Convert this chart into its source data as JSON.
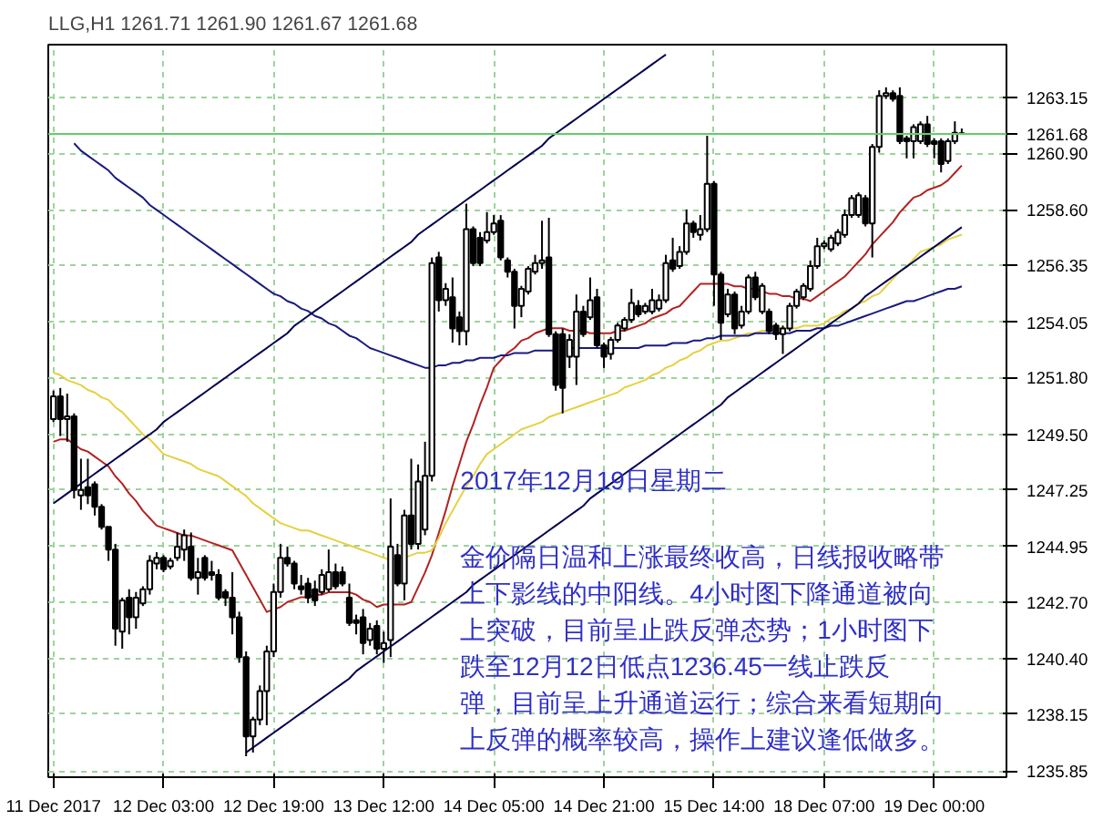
{
  "chart_data": {
    "type": "candlestick",
    "title": "LLG,H1  1261.71 1261.90 1261.67 1261.68",
    "categories": [
      "11 Dec 2017",
      null,
      null,
      null,
      null,
      null,
      null,
      null,
      null,
      null,
      null,
      null,
      null,
      null,
      null,
      null,
      "12 Dec 03:00",
      null,
      null,
      null,
      null,
      null,
      null,
      null,
      null,
      null,
      null,
      null,
      null,
      null,
      null,
      null,
      "12 Dec 19:00",
      null,
      null,
      null,
      null,
      null,
      null,
      null,
      null,
      null,
      null,
      null,
      null,
      null,
      null,
      null,
      "13 Dec 12:00",
      null,
      null,
      null,
      null,
      null,
      null,
      null,
      null,
      null,
      null,
      null,
      null,
      null,
      null,
      null,
      "14 Dec 05:00",
      null,
      null,
      null,
      null,
      null,
      null,
      null,
      null,
      null,
      null,
      null,
      null,
      null,
      null,
      null,
      "14 Dec 21:00",
      null,
      null,
      null,
      null,
      null,
      null,
      null,
      null,
      null,
      null,
      null,
      null,
      null,
      null,
      null,
      "15 Dec 14:00",
      null,
      null,
      null,
      null,
      null,
      null,
      null,
      null,
      null,
      null,
      null,
      null,
      null,
      null,
      null,
      "18 Dec 07:00",
      null,
      null,
      null,
      null,
      null,
      null,
      null,
      null,
      null,
      null,
      null,
      null,
      null,
      null,
      null,
      "19 Dec 00:00",
      null,
      null,
      null,
      null
    ],
    "ohlc": [
      [
        1250.12,
        1251.27,
        1250.0,
        1251.04
      ],
      [
        1251.04,
        1251.38,
        1249.43,
        1250.12
      ],
      [
        1250.12,
        1251.15,
        1249.2,
        1250.23
      ],
      [
        1250.23,
        1250.35,
        1246.9,
        1247.25
      ],
      [
        1247.02,
        1248.51,
        1246.44,
        1247.25
      ],
      [
        1247.36,
        1248.51,
        1246.67,
        1247.02
      ],
      [
        1247.48,
        1247.59,
        1246.21,
        1246.56
      ],
      [
        1246.56,
        1246.67,
        1245.64,
        1245.75
      ],
      [
        1245.75,
        1245.75,
        1244.37,
        1244.83
      ],
      [
        1244.83,
        1245.06,
        1240.93,
        1241.62
      ],
      [
        1241.5,
        1242.88,
        1240.81,
        1242.77
      ],
      [
        1242.88,
        1243.22,
        1241.39,
        1242.08
      ],
      [
        1242.08,
        1243.11,
        1241.62,
        1242.88
      ],
      [
        1242.65,
        1243.34,
        1242.54,
        1243.22
      ],
      [
        1243.22,
        1244.6,
        1243.0,
        1244.37
      ],
      [
        1244.26,
        1244.72,
        1244.03,
        1244.49
      ],
      [
        1244.49,
        1244.6,
        1243.91,
        1244.03
      ],
      [
        1244.14,
        1244.49,
        1244.03,
        1244.37
      ],
      [
        1244.49,
        1245.52,
        1244.37,
        1244.95
      ],
      [
        1244.83,
        1245.64,
        1244.37,
        1245.41
      ],
      [
        1244.95,
        1245.52,
        1243.57,
        1243.68
      ],
      [
        1243.68,
        1244.49,
        1243.0,
        1243.91
      ],
      [
        1244.49,
        1244.6,
        1243.57,
        1243.68
      ],
      [
        1243.91,
        1244.37,
        1243.57,
        1243.8
      ],
      [
        1243.8,
        1244.03,
        1242.77,
        1242.88
      ],
      [
        1243.11,
        1243.22,
        1242.54,
        1242.88
      ],
      [
        1242.88,
        1243.91,
        1241.39,
        1242.08
      ],
      [
        1242.08,
        1242.31,
        1240.24,
        1240.47
      ],
      [
        1240.47,
        1240.7,
        1236.45,
        1237.25
      ],
      [
        1237.25,
        1238.05,
        1236.6,
        1237.94
      ],
      [
        1237.94,
        1239.32,
        1237.71,
        1239.09
      ],
      [
        1239.09,
        1240.93,
        1237.71,
        1240.7
      ],
      [
        1240.7,
        1243.45,
        1240.47,
        1243.11
      ],
      [
        1243.11,
        1245.06,
        1242.88,
        1244.49
      ],
      [
        1244.49,
        1244.95,
        1244.14,
        1244.26
      ],
      [
        1244.26,
        1244.37,
        1243.22,
        1243.45
      ],
      [
        1243.34,
        1243.8,
        1243.0,
        1243.22
      ],
      [
        1243.45,
        1243.68,
        1242.65,
        1242.88
      ],
      [
        1243.22,
        1243.57,
        1242.54,
        1242.77
      ],
      [
        1243.11,
        1244.03,
        1243.0,
        1243.8
      ],
      [
        1243.22,
        1244.83,
        1243.11,
        1243.91
      ],
      [
        1243.91,
        1244.26,
        1243.22,
        1243.34
      ],
      [
        1243.91,
        1244.14,
        1243.34,
        1243.45
      ],
      [
        1242.88,
        1243.45,
        1241.73,
        1241.85
      ],
      [
        1241.96,
        1242.19,
        1241.39,
        1241.85
      ],
      [
        1242.08,
        1242.42,
        1240.58,
        1241.04
      ],
      [
        1241.16,
        1241.85,
        1240.93,
        1241.62
      ],
      [
        1241.73,
        1241.96,
        1240.58,
        1240.81
      ],
      [
        1240.81,
        1241.5,
        1240.24,
        1241.04
      ],
      [
        1241.16,
        1246.9,
        1240.47,
        1244.95
      ],
      [
        1244.6,
        1245.06,
        1243.34,
        1243.45
      ],
      [
        1243.45,
        1246.44,
        1242.77,
        1246.21
      ],
      [
        1246.21,
        1248.51,
        1244.83,
        1245.06
      ],
      [
        1245.06,
        1248.28,
        1244.83,
        1247.59
      ],
      [
        1245.64,
        1249.2,
        1245.41,
        1247.82
      ],
      [
        1247.82,
        1256.67,
        1247.59,
        1256.44
      ],
      [
        1256.67,
        1256.9,
        1254.48,
        1254.94
      ],
      [
        1254.94,
        1255.63,
        1254.71,
        1255.4
      ],
      [
        1255.06,
        1255.86,
        1253.22,
        1253.79
      ],
      [
        1254.25,
        1254.48,
        1253.11,
        1253.68
      ],
      [
        1253.68,
        1258.85,
        1253.11,
        1257.82
      ],
      [
        1257.82,
        1257.93,
        1256.32,
        1256.44
      ],
      [
        1257.47,
        1257.7,
        1256.32,
        1256.44
      ],
      [
        1257.36,
        1258.51,
        1257.24,
        1257.7
      ],
      [
        1257.7,
        1258.39,
        1257.59,
        1258.05
      ],
      [
        1258.16,
        1258.39,
        1256.55,
        1256.67
      ],
      [
        1256.55,
        1256.67,
        1255.86,
        1256.09
      ],
      [
        1256.09,
        1256.21,
        1253.79,
        1254.71
      ],
      [
        1254.71,
        1255.52,
        1254.25,
        1255.4
      ],
      [
        1255.29,
        1256.32,
        1255.17,
        1256.21
      ],
      [
        1256.09,
        1256.78,
        1255.98,
        1256.44
      ],
      [
        1256.44,
        1258.16,
        1256.21,
        1256.55
      ],
      [
        1256.67,
        1258.28,
        1253.45,
        1253.56
      ],
      [
        1253.56,
        1253.68,
        1251.27,
        1251.5
      ],
      [
        1253.56,
        1253.79,
        1250.35,
        1251.38
      ],
      [
        1252.65,
        1253.56,
        1252.19,
        1253.33
      ],
      [
        1252.65,
        1255.17,
        1251.5,
        1254.48
      ],
      [
        1254.48,
        1254.71,
        1253.45,
        1253.56
      ],
      [
        1254.25,
        1255.86,
        1254.14,
        1254.94
      ],
      [
        1255.06,
        1255.4,
        1252.99,
        1253.11
      ],
      [
        1253.11,
        1253.22,
        1252.19,
        1252.65
      ],
      [
        1252.76,
        1253.45,
        1252.53,
        1253.33
      ],
      [
        1253.33,
        1254.02,
        1253.22,
        1253.91
      ],
      [
        1253.79,
        1254.25,
        1253.68,
        1254.14
      ],
      [
        1254.14,
        1255.4,
        1254.02,
        1254.83
      ],
      [
        1254.71,
        1254.94,
        1254.25,
        1254.37
      ],
      [
        1254.48,
        1254.83,
        1254.37,
        1254.71
      ],
      [
        1254.48,
        1255.4,
        1254.37,
        1254.94
      ],
      [
        1254.6,
        1255.17,
        1254.48,
        1254.94
      ],
      [
        1254.94,
        1256.78,
        1254.83,
        1256.44
      ],
      [
        1256.55,
        1257.47,
        1256.09,
        1256.21
      ],
      [
        1256.32,
        1257.13,
        1256.21,
        1256.9
      ],
      [
        1256.9,
        1258.62,
        1256.78,
        1258.05
      ],
      [
        1258.05,
        1258.16,
        1257.47,
        1257.7
      ],
      [
        1257.59,
        1258.39,
        1257.36,
        1257.82
      ],
      [
        1257.82,
        1261.61,
        1257.7,
        1259.66
      ],
      [
        1259.66,
        1259.77,
        1254.71,
        1255.98
      ],
      [
        1255.98,
        1256.09,
        1253.33,
        1254.02
      ],
      [
        1254.37,
        1255.4,
        1254.25,
        1255.17
      ],
      [
        1255.17,
        1255.29,
        1253.56,
        1253.79
      ],
      [
        1253.91,
        1254.71,
        1253.79,
        1254.48
      ],
      [
        1254.48,
        1255.98,
        1254.37,
        1255.86
      ],
      [
        1255.86,
        1256.09,
        1254.94,
        1255.06
      ],
      [
        1254.48,
        1255.63,
        1254.37,
        1255.52
      ],
      [
        1254.48,
        1254.6,
        1253.56,
        1253.68
      ],
      [
        1253.91,
        1254.02,
        1253.33,
        1253.56
      ],
      [
        1253.56,
        1253.91,
        1252.76,
        1253.79
      ],
      [
        1253.79,
        1254.83,
        1253.68,
        1254.71
      ],
      [
        1254.71,
        1255.4,
        1254.6,
        1255.29
      ],
      [
        1255.06,
        1255.63,
        1254.94,
        1255.52
      ],
      [
        1255.4,
        1256.55,
        1255.29,
        1256.32
      ],
      [
        1256.32,
        1257.47,
        1256.21,
        1257.13
      ],
      [
        1257.13,
        1257.36,
        1257.01,
        1257.24
      ],
      [
        1257.01,
        1257.59,
        1256.9,
        1257.47
      ],
      [
        1257.24,
        1257.82,
        1257.13,
        1257.7
      ],
      [
        1257.59,
        1258.62,
        1257.47,
        1258.39
      ],
      [
        1258.39,
        1259.2,
        1258.28,
        1259.08
      ],
      [
        1258.39,
        1259.31,
        1258.28,
        1259.2
      ],
      [
        1259.08,
        1259.2,
        1257.93,
        1258.05
      ],
      [
        1258.05,
        1261.27,
        1256.67,
        1261.15
      ],
      [
        1261.15,
        1263.45,
        1260.92,
        1263.22
      ],
      [
        1263.22,
        1263.57,
        1263.1,
        1263.33
      ],
      [
        1263.33,
        1263.45,
        1262.99,
        1263.1
      ],
      [
        1263.22,
        1263.57,
        1261.27,
        1261.38
      ],
      [
        1261.5,
        1261.61,
        1260.69,
        1261.38
      ],
      [
        1261.38,
        1262.07,
        1260.69,
        1261.96
      ],
      [
        1261.38,
        1262.19,
        1261.27,
        1262.07
      ],
      [
        1262.07,
        1262.41,
        1261.15,
        1261.27
      ],
      [
        1261.38,
        1261.5,
        1260.69,
        1261.27
      ],
      [
        1261.38,
        1261.5,
        1260.12,
        1260.46
      ],
      [
        1260.58,
        1261.5,
        1260.46,
        1261.38
      ],
      [
        1261.38,
        1262.19,
        1261.27,
        1261.73
      ],
      [
        1261.71,
        1261.9,
        1261.67,
        1261.68
      ]
    ],
    "series": [
      {
        "type": "line",
        "color": "#b22222",
        "values": [
          1249.2,
          1249.3,
          1249.3,
          1249.1,
          1248.9,
          1248.8,
          1248.6,
          1248.4,
          1248.2,
          1247.8,
          1247.5,
          1247.1,
          1246.8,
          1246.4,
          1246.1,
          1245.8,
          1245.7,
          1245.6,
          1245.5,
          1245.4,
          1245.4,
          1245.3,
          1245.2,
          1245.1,
          1245.0,
          1244.9,
          1244.8,
          1244.3,
          1243.8,
          1243.3,
          1242.8,
          1242.3,
          1242.4,
          1242.5,
          1242.7,
          1242.8,
          1242.9,
          1242.9,
          1243.0,
          1243.0,
          1243.1,
          1243.1,
          1243.1,
          1243.1,
          1243.0,
          1242.8,
          1242.7,
          1242.5,
          1242.6,
          1242.6,
          1242.6,
          1242.6,
          1242.7,
          1243.3,
          1243.9,
          1244.6,
          1245.5,
          1246.4,
          1247.4,
          1248.3,
          1249.2,
          1249.9,
          1250.7,
          1251.4,
          1252.2,
          1252.5,
          1252.8,
          1253.0,
          1253.3,
          1253.4,
          1253.6,
          1253.7,
          1253.8,
          1253.8,
          1253.8,
          1253.7,
          1253.7,
          1253.7,
          1253.6,
          1253.6,
          1253.6,
          1253.6,
          1253.7,
          1253.7,
          1253.8,
          1253.9,
          1254.0,
          1254.2,
          1254.3,
          1254.4,
          1254.6,
          1254.7,
          1255.0,
          1255.3,
          1255.6,
          1255.6,
          1255.6,
          1255.6,
          1255.6,
          1255.5,
          1255.5,
          1255.4,
          1255.4,
          1255.3,
          1255.2,
          1255.2,
          1255.1,
          1255.1,
          1255.0,
          1255.0,
          1254.9,
          1255.1,
          1255.3,
          1255.5,
          1255.7,
          1255.9,
          1256.2,
          1256.5,
          1256.8,
          1257.2,
          1257.5,
          1257.8,
          1258.1,
          1258.5,
          1258.8,
          1259.1,
          1259.2,
          1259.4,
          1259.5,
          1259.6,
          1259.8,
          1260.1,
          1260.4
        ]
      },
      {
        "type": "line",
        "color": "#e6d040",
        "values": [
          1252.0,
          1251.9,
          1251.7,
          1251.6,
          1251.5,
          1251.3,
          1251.2,
          1251.0,
          1250.9,
          1250.6,
          1250.4,
          1250.1,
          1249.8,
          1249.5,
          1249.3,
          1249.0,
          1248.7,
          1248.6,
          1248.5,
          1248.4,
          1248.3,
          1248.1,
          1248.0,
          1247.9,
          1247.8,
          1247.6,
          1247.4,
          1247.2,
          1247.0,
          1246.7,
          1246.5,
          1246.3,
          1246.1,
          1245.9,
          1245.8,
          1245.7,
          1245.6,
          1245.6,
          1245.5,
          1245.4,
          1245.3,
          1245.2,
          1245.1,
          1245.0,
          1244.9,
          1244.8,
          1244.7,
          1244.6,
          1244.5,
          1244.4,
          1244.5,
          1244.5,
          1244.6,
          1244.7,
          1244.7,
          1244.8,
          1245.3,
          1245.9,
          1246.4,
          1246.9,
          1247.4,
          1247.8,
          1248.3,
          1248.7,
          1248.9,
          1249.1,
          1249.3,
          1249.5,
          1249.7,
          1249.8,
          1249.9,
          1250.0,
          1250.2,
          1250.3,
          1250.4,
          1250.5,
          1250.6,
          1250.7,
          1250.8,
          1250.9,
          1251.0,
          1251.1,
          1251.2,
          1251.4,
          1251.5,
          1251.6,
          1251.7,
          1251.9,
          1252.0,
          1252.2,
          1252.3,
          1252.5,
          1252.6,
          1252.8,
          1252.9,
          1253.1,
          1253.2,
          1253.3,
          1253.3,
          1253.4,
          1253.5,
          1253.6,
          1253.6,
          1253.7,
          1253.7,
          1253.8,
          1253.8,
          1253.8,
          1253.8,
          1253.9,
          1253.9,
          1253.9,
          1254.0,
          1254.2,
          1254.3,
          1254.5,
          1254.6,
          1254.8,
          1254.9,
          1255.1,
          1255.2,
          1255.5,
          1255.8,
          1256.1,
          1256.3,
          1256.6,
          1256.9,
          1257.0,
          1257.1,
          1257.2,
          1257.4,
          1257.5,
          1257.6
        ]
      },
      {
        "type": "line",
        "color": "#1a1a80",
        "values": [
          null,
          null,
          null,
          1261.3,
          1261.0,
          1260.8,
          1260.6,
          1260.4,
          1260.2,
          1259.9,
          1259.7,
          1259.5,
          1259.3,
          1259.1,
          1258.8,
          1258.6,
          1258.4,
          1258.2,
          1258.0,
          1257.8,
          1257.6,
          1257.4,
          1257.2,
          1257.0,
          1256.8,
          1256.6,
          1256.4,
          1256.2,
          1256.0,
          1255.8,
          1255.6,
          1255.4,
          1255.2,
          1255.1,
          1254.9,
          1254.8,
          1254.6,
          1254.5,
          1254.3,
          1254.2,
          1254.0,
          1253.9,
          1253.7,
          1253.5,
          1253.4,
          1253.2,
          1253.0,
          1252.9,
          1252.8,
          1252.7,
          1252.6,
          1252.5,
          1252.4,
          1252.3,
          1252.2,
          1252.2,
          1252.3,
          1252.3,
          1252.4,
          1252.4,
          1252.5,
          1252.5,
          1252.6,
          1252.6,
          1252.6,
          1252.7,
          1252.7,
          1252.8,
          1252.8,
          1252.8,
          1252.9,
          1252.9,
          1252.9,
          1252.9,
          null,
          1253.0,
          1253.0,
          1253.0,
          1253.0,
          1253.0,
          1253.0,
          1253.0,
          1253.0,
          1253.0,
          1253.0,
          1253.0,
          1253.1,
          1253.1,
          1253.1,
          1253.1,
          1253.2,
          1253.2,
          1253.2,
          1253.3,
          1253.3,
          1253.4,
          1253.4,
          1253.5,
          1253.5,
          1253.5,
          1253.5,
          1253.5,
          1253.6,
          1253.6,
          1253.6,
          1253.6,
          1253.6,
          1253.6,
          1253.7,
          1253.7,
          1253.7,
          1253.8,
          1253.8,
          1253.9,
          1253.9,
          1254.0,
          1254.1,
          1254.2,
          1254.3,
          1254.4,
          1254.5,
          1254.6,
          1254.7,
          1254.8,
          1254.9,
          1254.9,
          1255.0,
          1255.1,
          1255.2,
          1255.3,
          1255.4,
          1255.4,
          1255.5
        ]
      },
      {
        "type": "line",
        "color": "#000050",
        "values": [
          1246.7,
          1246.9,
          1247.1,
          1247.3,
          1247.5,
          1247.7,
          1247.9,
          1248.1,
          1248.3,
          1248.5,
          1248.7,
          1248.9,
          1249.1,
          1249.3,
          1249.5,
          1249.7,
          1250.0,
          1250.2,
          1250.4,
          1250.6,
          1250.8,
          1251.0,
          1251.2,
          1251.4,
          1251.6,
          1251.8,
          1252.0,
          1252.2,
          1252.4,
          1252.6,
          1252.8,
          1253.0,
          1253.2,
          1253.4,
          1253.6,
          1253.9,
          1254.1,
          1254.3,
          1254.5,
          1254.7,
          1254.9,
          1255.1,
          1255.3,
          1255.5,
          1255.7,
          1255.9,
          1256.1,
          1256.3,
          1256.5,
          1256.7,
          1256.9,
          1257.1,
          1257.3,
          1257.6,
          1257.8,
          1258.0,
          1258.2,
          1258.4,
          1258.6,
          1258.8,
          1259.0,
          1259.2,
          1259.4,
          1259.6,
          1259.8,
          1260.0,
          1260.2,
          1260.4,
          1260.6,
          1260.8,
          1261.0,
          1261.2,
          1261.5,
          1261.7,
          1261.9,
          1262.1,
          1262.3,
          1262.5,
          1262.7,
          1262.9,
          1263.1,
          1263.3,
          1263.5,
          1263.7,
          1263.9,
          1264.1,
          1264.3,
          1264.5,
          1264.7,
          1264.9,
          null,
          null,
          null,
          null,
          null,
          null,
          null,
          null,
          null,
          null,
          null,
          null,
          null,
          null,
          null,
          null,
          null,
          null,
          null,
          null,
          null,
          null,
          null,
          null,
          null,
          null,
          null,
          null,
          null,
          null,
          null,
          null,
          null,
          null,
          null,
          null,
          null,
          null,
          null,
          null,
          null,
          null,
          null
        ]
      },
      {
        "type": "line",
        "color": "#000050",
        "values": [
          null,
          null,
          null,
          null,
          null,
          null,
          null,
          null,
          null,
          null,
          null,
          null,
          null,
          null,
          null,
          null,
          null,
          null,
          null,
          null,
          null,
          null,
          null,
          null,
          null,
          null,
          null,
          null,
          1236.6,
          1236.8,
          1237.0,
          1237.2,
          1237.4,
          1237.6,
          1237.8,
          1238.0,
          1238.2,
          1238.4,
          1238.6,
          1238.8,
          1239.0,
          1239.2,
          1239.4,
          1239.6,
          1239.9,
          1240.1,
          1240.3,
          1240.5,
          1240.7,
          1240.9,
          1241.1,
          1241.3,
          1241.5,
          1241.7,
          1241.9,
          1242.1,
          1242.3,
          1242.5,
          1242.7,
          1242.9,
          1243.1,
          1243.4,
          1243.6,
          1243.8,
          1244.0,
          1244.2,
          1244.4,
          1244.6,
          1244.8,
          1245.0,
          1245.2,
          1245.4,
          1245.6,
          1245.8,
          1246.0,
          1246.2,
          1246.4,
          1246.6,
          1246.9,
          1247.1,
          1247.3,
          1247.5,
          1247.7,
          1247.9,
          1248.1,
          1248.3,
          1248.5,
          1248.7,
          1248.9,
          1249.1,
          1249.3,
          1249.5,
          1249.7,
          1249.9,
          1250.1,
          1250.3,
          1250.5,
          1250.7,
          1251.0,
          1251.2,
          1251.4,
          1251.6,
          1251.8,
          1252.0,
          1252.2,
          1252.4,
          1252.6,
          1252.8,
          1253.0,
          1253.2,
          1253.4,
          1253.6,
          1253.8,
          1254.0,
          1254.2,
          1254.4,
          1254.6,
          1254.8,
          1255.1,
          1255.3,
          1255.5,
          1255.7,
          1255.9,
          1256.1,
          1256.3,
          1256.5,
          1256.7,
          1256.9,
          1257.1,
          1257.3,
          1257.5,
          1257.7,
          1257.9
        ]
      }
    ],
    "ref_lines": [
      {
        "axis": "y",
        "value": 1261.68,
        "label": "1261.68",
        "color": "#66cc66"
      }
    ],
    "ylim": [
      1235.6,
      1265.3
    ],
    "yticks": [
      1235.85,
      1238.15,
      {
        "value": 1240.4,
        "label": "1240.40"
      },
      {
        "value": 1242.7,
        "label": "1242.70"
      },
      1244.95,
      1247.25,
      {
        "value": 1249.5,
        "label": "1249.50"
      },
      {
        "value": 1251.8,
        "label": "1251.80"
      },
      1254.05,
      1256.35,
      {
        "value": 1258.6,
        "label": "1258.60"
      },
      {
        "value": 1260.9,
        "label": "1260.90"
      },
      1263.15
    ],
    "grid": true,
    "annotations": [
      "2017年12月19日星期二",
      "金价隔日温和上涨最终收高，日线报收略带",
      "上下影线的中阳线。4小时图下降通道被向",
      "上突破，目前呈止跌反弹态势；1小时图下",
      "跌至12月12日低点1236.45一线止跌反",
      "弹，目前呈上升通道运行；综合来看短期向",
      "上反弹的概率较高，操作上建议逢低做多。"
    ]
  }
}
